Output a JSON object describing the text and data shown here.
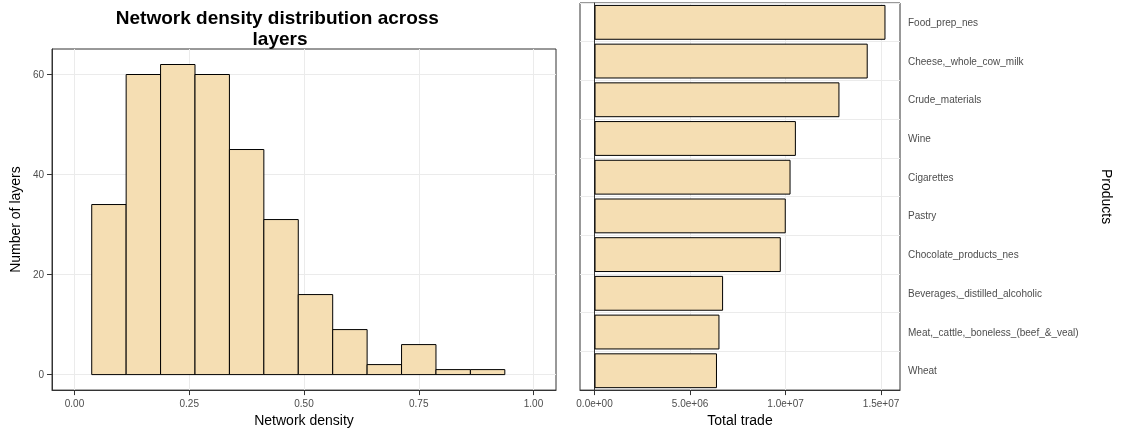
{
  "chart_data": [
    {
      "type": "histogram",
      "title": "Network density distribution across layers",
      "xlabel": "Network density",
      "ylabel": "Number of layers",
      "bins": [
        0.0375,
        0.1125,
        0.1875,
        0.2625,
        0.3375,
        0.4125,
        0.4875,
        0.5625,
        0.6375,
        0.7125,
        0.7875,
        0.8625,
        0.9375
      ],
      "values": [
        34,
        60,
        62,
        60,
        45,
        31,
        16,
        9,
        2,
        6,
        1,
        1
      ],
      "color": "#f5deb3",
      "xlim": [
        -0.049,
        1.049
      ],
      "xticks": [
        {
          "value": 0,
          "label": "0.00"
        },
        {
          "value": 0.25,
          "label": "0.25"
        },
        {
          "value": 0.5,
          "label": "0.50"
        },
        {
          "value": 0.75,
          "label": "0.75"
        },
        {
          "value": 1,
          "label": "1.00"
        }
      ],
      "ylim": [
        -3.1,
        65.1
      ],
      "yticks": [
        0,
        20,
        40,
        60
      ],
      "grid": true
    },
    {
      "type": "bar",
      "orientation": "horizontal",
      "xlabel": "Total trade",
      "ylabel": "Products",
      "categories": [
        "Food_prep_nes",
        "Cheese,_whole_cow_milk",
        "Crude_materials",
        "Wine",
        "Cigarettes",
        "Pastry",
        "Chocolate_products_nes",
        "Beverages,_distilled_alcoholic",
        "Meat,_cattle,_boneless_(beef_&_veal)",
        "Wheat"
      ],
      "values": [
        15230000,
        14300000,
        12820000,
        10540000,
        10260000,
        10010000,
        9750000,
        6730000,
        6540000,
        6410000
      ],
      "color": "#f5deb3",
      "xlim": [
        -760000,
        15990000
      ],
      "xticks": [
        {
          "value": 0,
          "label": "0.0e+00"
        },
        {
          "value": 5000000,
          "label": "5.0e+06"
        },
        {
          "value": 10000000,
          "label": "1.0e+07"
        },
        {
          "value": 15000000,
          "label": "1.5e+07"
        }
      ],
      "grid": true
    }
  ]
}
